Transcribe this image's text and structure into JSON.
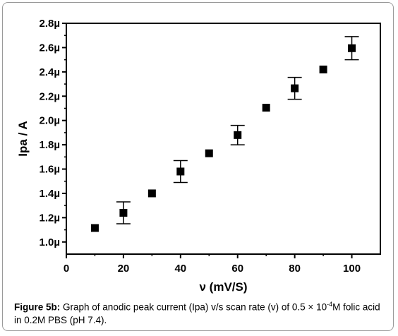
{
  "chart_data": {
    "type": "scatter",
    "xlabel": "ν  (mV/S)",
    "ylabel": "Ipa / A",
    "xlim": [
      0,
      110
    ],
    "ylim": [
      0.9,
      2.8
    ],
    "x_ticks": [
      0,
      20,
      40,
      60,
      80,
      100
    ],
    "x_tick_labels": [
      "0",
      "20",
      "40",
      "60",
      "80",
      "100"
    ],
    "y_ticks": [
      1.0,
      1.2,
      1.4,
      1.6,
      1.8,
      2.0,
      2.2,
      2.4,
      2.6,
      2.8
    ],
    "y_tick_labels": [
      "1.0µ",
      "1.2µ",
      "1.4µ",
      "1.6µ",
      "1.8µ",
      "2.0µ",
      "2.2µ",
      "2.4µ",
      "2.6µ",
      "2.8µ"
    ],
    "series": [
      {
        "marker": "square",
        "color": "#000000",
        "x": [
          10,
          20,
          30,
          40,
          50,
          60,
          70,
          80,
          90,
          100
        ],
        "y": [
          1.115,
          1.24,
          1.4,
          1.58,
          1.73,
          1.88,
          2.105,
          2.265,
          2.42,
          2.595
        ],
        "yerr": [
          0,
          0.09,
          0,
          0.09,
          0,
          0.08,
          0,
          0.09,
          0,
          0.095
        ]
      }
    ],
    "grid": false,
    "legend": "none"
  },
  "caption": {
    "label": "Figure 5b:",
    "text": " Graph of anodic peak current (Ipa) v/s scan rate (v) of 0.5 × 10",
    "superscript": "-4",
    "text_after": "M folic acid in 0.2M PBS (pH 7.4)."
  },
  "colors": {
    "frame_border": "#9a9a9a",
    "ink": "#000000"
  }
}
